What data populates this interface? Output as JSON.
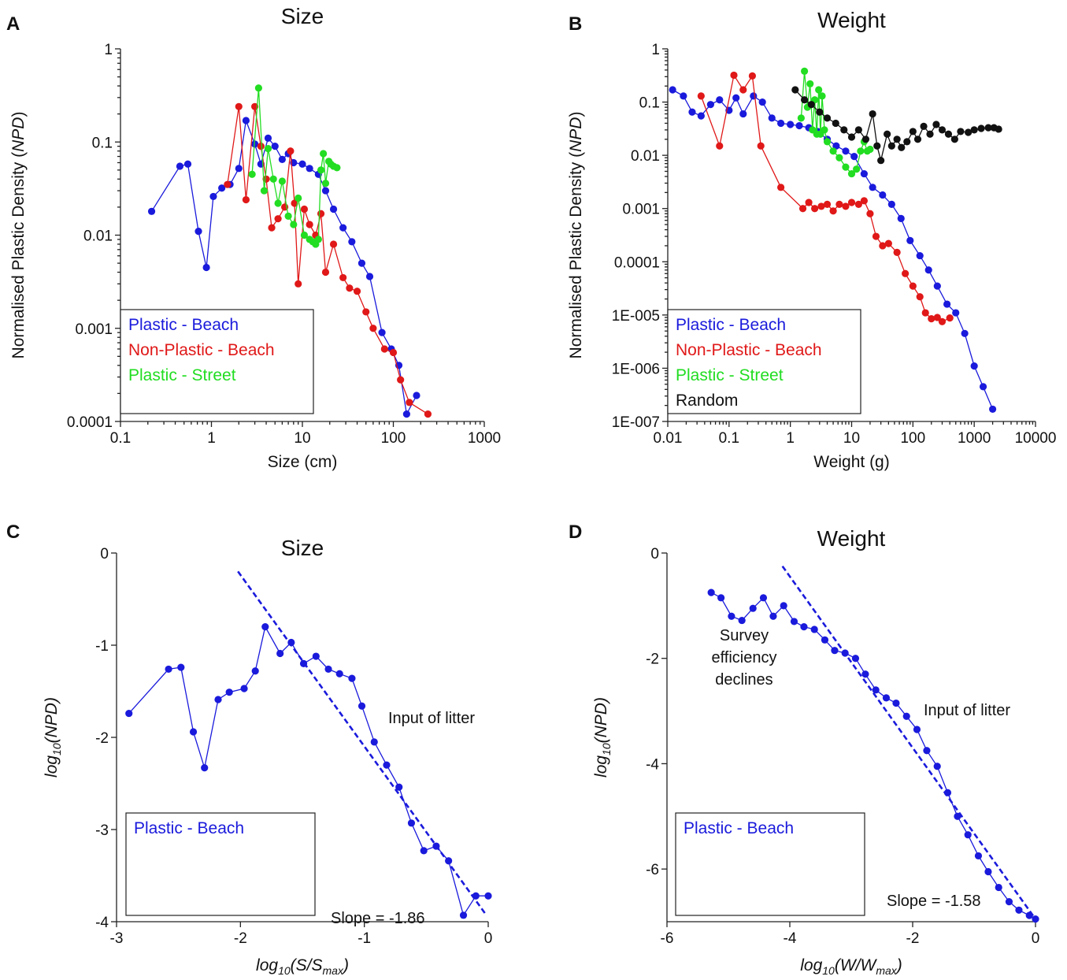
{
  "colors": {
    "blue": "#1a1adc",
    "red": "#e01818",
    "green": "#22dd22",
    "black": "#111111"
  },
  "chart_data": [
    {
      "id": "A",
      "panel_label": "A",
      "type": "line",
      "title": "Size",
      "xlabel": "Size (cm)",
      "ylabel_parts": [
        "Normalised Plastic Density (",
        "NPD",
        ")"
      ],
      "xscale": "log",
      "yscale": "log",
      "xlim": [
        0.1,
        1000
      ],
      "ylim": [
        0.0001,
        1
      ],
      "xticks": [
        {
          "v": 0.1,
          "label": "0.1"
        },
        {
          "v": 1,
          "label": "1"
        },
        {
          "v": 10,
          "label": "10"
        },
        {
          "v": 100,
          "label": "100"
        },
        {
          "v": 1000,
          "label": "1000"
        }
      ],
      "yticks": [
        {
          "v": 0.0001,
          "label": "0.0001"
        },
        {
          "v": 0.001,
          "label": "0.001"
        },
        {
          "v": 0.01,
          "label": "0.01"
        },
        {
          "v": 0.1,
          "label": "0.1"
        },
        {
          "v": 1,
          "label": "1"
        }
      ],
      "legend": {
        "position": "bottom-left",
        "entries": [
          {
            "label": "Plastic - Beach",
            "color": "blue"
          },
          {
            "label": "Non-Plastic - Beach",
            "color": "red"
          },
          {
            "label": "Plastic - Street",
            "color": "green"
          }
        ]
      },
      "series": [
        {
          "name": "Plastic - Beach",
          "color": "blue",
          "x": [
            0.22,
            0.45,
            0.55,
            0.72,
            0.88,
            1.05,
            1.3,
            1.6,
            2.0,
            2.4,
            3.0,
            3.5,
            4.2,
            5.0,
            6.0,
            7.0,
            8.0,
            10,
            12,
            15,
            18,
            22,
            28,
            35,
            45,
            55,
            75,
            95,
            115,
            140,
            180
          ],
          "y": [
            0.018,
            0.055,
            0.058,
            0.011,
            0.0045,
            0.026,
            0.032,
            0.035,
            0.052,
            0.17,
            0.095,
            0.058,
            0.11,
            0.09,
            0.065,
            0.075,
            0.06,
            0.058,
            0.052,
            0.045,
            0.03,
            0.019,
            0.012,
            0.0085,
            0.005,
            0.0036,
            0.0009,
            0.0006,
            0.0004,
            0.00012,
            0.00019
          ]
        },
        {
          "name": "Non-Plastic - Beach",
          "color": "red",
          "x": [
            1.5,
            2.0,
            2.4,
            3.0,
            3.5,
            4.0,
            4.6,
            5.4,
            6.4,
            7.4,
            8.2,
            9.0,
            10.5,
            12,
            14,
            16,
            18,
            22,
            28,
            33,
            40,
            50,
            60,
            80,
            100,
            120,
            150,
            240
          ],
          "y": [
            0.035,
            0.24,
            0.024,
            0.24,
            0.09,
            0.04,
            0.012,
            0.015,
            0.02,
            0.08,
            0.022,
            0.003,
            0.019,
            0.013,
            0.01,
            0.017,
            0.004,
            0.008,
            0.0035,
            0.0027,
            0.0025,
            0.0015,
            0.001,
            0.0006,
            0.00055,
            0.00028,
            0.00016,
            0.00012
          ]
        },
        {
          "name": "Plastic - Street",
          "color": "green",
          "x": [
            2.8,
            3.3,
            3.8,
            4.2,
            4.8,
            5.4,
            6.0,
            7.0,
            8.0,
            9.0,
            10.5,
            12,
            13,
            14,
            15,
            16,
            17,
            18,
            19.5,
            20.5,
            22,
            24
          ],
          "y": [
            0.045,
            0.38,
            0.03,
            0.085,
            0.04,
            0.022,
            0.038,
            0.016,
            0.013,
            0.025,
            0.01,
            0.009,
            0.0085,
            0.008,
            0.009,
            0.05,
            0.075,
            0.036,
            0.062,
            0.058,
            0.055,
            0.053
          ]
        }
      ]
    },
    {
      "id": "B",
      "panel_label": "B",
      "type": "line",
      "title": "Weight",
      "xlabel": "Weight (g)",
      "ylabel_parts": [
        "Normalised Plastic Density (",
        "NPD",
        ")"
      ],
      "xscale": "log",
      "yscale": "log",
      "xlim": [
        0.01,
        10000
      ],
      "ylim": [
        1e-07,
        1
      ],
      "xticks": [
        {
          "v": 0.01,
          "label": "0.01"
        },
        {
          "v": 0.1,
          "label": "0.1"
        },
        {
          "v": 1,
          "label": "1"
        },
        {
          "v": 10,
          "label": "10"
        },
        {
          "v": 100,
          "label": "100"
        },
        {
          "v": 1000,
          "label": "1000"
        },
        {
          "v": 10000,
          "label": "10000"
        }
      ],
      "yticks": [
        {
          "v": 1e-07,
          "label": "1E-007"
        },
        {
          "v": 1e-06,
          "label": "1E-006"
        },
        {
          "v": 1e-05,
          "label": "1E-005"
        },
        {
          "v": 0.0001,
          "label": "0.0001"
        },
        {
          "v": 0.001,
          "label": "0.001"
        },
        {
          "v": 0.01,
          "label": "0.01"
        },
        {
          "v": 0.1,
          "label": "0.1"
        },
        {
          "v": 1,
          "label": "1"
        }
      ],
      "legend": {
        "position": "bottom-left",
        "entries": [
          {
            "label": "Plastic - Beach",
            "color": "blue"
          },
          {
            "label": "Non-Plastic - Beach",
            "color": "red"
          },
          {
            "label": "Plastic - Street",
            "color": "green"
          },
          {
            "label": "Random",
            "color": "black"
          }
        ]
      },
      "series": [
        {
          "name": "Plastic - Beach",
          "color": "blue",
          "x": [
            0.012,
            0.018,
            0.025,
            0.035,
            0.05,
            0.07,
            0.1,
            0.13,
            0.17,
            0.25,
            0.35,
            0.5,
            0.7,
            1.0,
            1.4,
            2.0,
            2.8,
            4.0,
            5.6,
            8.0,
            11,
            16,
            22,
            32,
            45,
            64,
            90,
            130,
            180,
            250,
            360,
            500,
            700,
            1000,
            1400,
            2000
          ],
          "y": [
            0.17,
            0.13,
            0.065,
            0.055,
            0.09,
            0.11,
            0.07,
            0.12,
            0.06,
            0.13,
            0.1,
            0.05,
            0.04,
            0.038,
            0.036,
            0.033,
            0.028,
            0.02,
            0.015,
            0.012,
            0.0095,
            0.0045,
            0.0025,
            0.0018,
            0.0012,
            0.00065,
            0.00025,
            0.00013,
            7e-05,
            3.5e-05,
            1.6e-05,
            1.1e-05,
            4.5e-06,
            1.1e-06,
            4.5e-07,
            1.7e-07
          ]
        },
        {
          "name": "Non-Plastic - Beach",
          "color": "red",
          "x": [
            0.035,
            0.07,
            0.12,
            0.17,
            0.24,
            0.33,
            0.7,
            1.6,
            2.0,
            2.5,
            3.2,
            4.0,
            5.0,
            6.3,
            8.0,
            10,
            13,
            16,
            20,
            25,
            32,
            40,
            55,
            75,
            100,
            130,
            160,
            200,
            250,
            300,
            400
          ],
          "y": [
            0.13,
            0.015,
            0.32,
            0.17,
            0.31,
            0.015,
            0.0025,
            0.001,
            0.0013,
            0.001,
            0.0011,
            0.0012,
            0.0009,
            0.0012,
            0.0011,
            0.0013,
            0.0012,
            0.0014,
            0.0008,
            0.0003,
            0.0002,
            0.00022,
            0.00015,
            6e-05,
            3.5e-05,
            2.2e-05,
            1.1e-05,
            8.5e-06,
            9e-06,
            7.5e-06,
            8.8e-06
          ]
        },
        {
          "name": "Plastic - Street",
          "color": "green",
          "x": [
            1.5,
            1.7,
            1.9,
            2.1,
            2.3,
            2.5,
            2.7,
            2.9,
            3.1,
            3.3,
            3.6,
            4.0,
            5.0,
            6.3,
            8.0,
            10,
            12,
            14,
            16,
            18,
            20
          ],
          "y": [
            0.05,
            0.38,
            0.08,
            0.22,
            0.03,
            0.11,
            0.025,
            0.17,
            0.025,
            0.13,
            0.03,
            0.018,
            0.012,
            0.009,
            0.006,
            0.0045,
            0.0055,
            0.012,
            0.018,
            0.012,
            0.013
          ]
        },
        {
          "name": "Random",
          "color": "black",
          "x": [
            1.2,
            1.7,
            2.2,
            3.0,
            4.0,
            5.5,
            7.5,
            10,
            13,
            17,
            22,
            26,
            30,
            38,
            45,
            55,
            65,
            80,
            100,
            120,
            150,
            190,
            240,
            300,
            380,
            480,
            600,
            800,
            1000,
            1300,
            1700,
            2100,
            2500
          ],
          "y": [
            0.17,
            0.11,
            0.09,
            0.065,
            0.05,
            0.04,
            0.03,
            0.022,
            0.03,
            0.02,
            0.06,
            0.015,
            0.008,
            0.025,
            0.015,
            0.02,
            0.014,
            0.018,
            0.028,
            0.02,
            0.035,
            0.025,
            0.038,
            0.03,
            0.025,
            0.02,
            0.028,
            0.027,
            0.03,
            0.032,
            0.033,
            0.033,
            0.031
          ]
        }
      ]
    },
    {
      "id": "C",
      "panel_label": "C",
      "type": "line",
      "title": "Size",
      "xlabel_parts": [
        "log",
        "10",
        "(S/S",
        "max",
        ")"
      ],
      "ylabel_parts": [
        "log",
        "10",
        "(NPD)"
      ],
      "xscale": "linear",
      "yscale": "linear",
      "xlim": [
        -3,
        0
      ],
      "ylim": [
        -4,
        0
      ],
      "xticks": [
        {
          "v": -3,
          "label": "-3"
        },
        {
          "v": -2,
          "label": "-2"
        },
        {
          "v": -1,
          "label": "-1"
        },
        {
          "v": 0,
          "label": "0"
        }
      ],
      "yticks": [
        {
          "v": -4,
          "label": "-4"
        },
        {
          "v": -3,
          "label": "-3"
        },
        {
          "v": -2,
          "label": "-2"
        },
        {
          "v": -1,
          "label": "-1"
        },
        {
          "v": 0,
          "label": "0"
        }
      ],
      "legend": {
        "position": "bottom-left",
        "entries": [
          {
            "label": "Plastic - Beach",
            "color": "blue"
          }
        ]
      },
      "fit_line": {
        "x": [
          -2.02,
          -0.02
        ],
        "y": [
          -0.2,
          -3.92
        ],
        "label": "Slope = -1.86",
        "color": "blue"
      },
      "annotations": [
        "Input of litter"
      ],
      "series": [
        {
          "name": "Plastic - Beach",
          "color": "blue",
          "x": [
            -2.9,
            -2.58,
            -2.48,
            -2.38,
            -2.29,
            -2.18,
            -2.09,
            -1.97,
            -1.88,
            -1.8,
            -1.68,
            -1.59,
            -1.49,
            -1.39,
            -1.29,
            -1.2,
            -1.1,
            -1.02,
            -0.92,
            -0.82,
            -0.72,
            -0.62,
            -0.52,
            -0.42,
            -0.32,
            -0.2,
            -0.1,
            0.0
          ],
          "y": [
            -1.74,
            -1.26,
            -1.24,
            -1.94,
            -2.33,
            -1.59,
            -1.51,
            -1.47,
            -1.28,
            -0.8,
            -1.09,
            -0.97,
            -1.2,
            -1.12,
            -1.26,
            -1.31,
            -1.36,
            -1.66,
            -2.05,
            -2.3,
            -2.54,
            -2.93,
            -3.23,
            -3.18,
            -3.34,
            -3.93,
            -3.72,
            -3.72
          ]
        }
      ]
    },
    {
      "id": "D",
      "panel_label": "D",
      "type": "line",
      "title": "Weight",
      "xlabel_parts": [
        "log",
        "10",
        "(W/W",
        "max",
        ")"
      ],
      "ylabel_parts": [
        "log",
        "10",
        "(NPD)"
      ],
      "xscale": "linear",
      "yscale": "linear",
      "xlim": [
        -6,
        0
      ],
      "ylim": [
        -7,
        0
      ],
      "xticks": [
        {
          "v": -6,
          "label": "-6"
        },
        {
          "v": -4,
          "label": "-4"
        },
        {
          "v": -2,
          "label": "-2"
        },
        {
          "v": 0,
          "label": "0"
        }
      ],
      "yticks": [
        {
          "v": -6,
          "label": "-6"
        },
        {
          "v": -4,
          "label": "-4"
        },
        {
          "v": -2,
          "label": "-2"
        },
        {
          "v": 0,
          "label": "0"
        }
      ],
      "legend": {
        "position": "bottom-left",
        "entries": [
          {
            "label": "Plastic - Beach",
            "color": "blue"
          }
        ]
      },
      "fit_line": {
        "x": [
          -4.12,
          0.0
        ],
        "y": [
          -0.25,
          -6.95
        ],
        "label": "Slope = -1.58",
        "color": "blue"
      },
      "annotations": [
        "Survey efficiency declines",
        "Input of litter"
      ],
      "series": [
        {
          "name": "Plastic - Beach",
          "color": "blue",
          "x": [
            -5.28,
            -5.12,
            -4.95,
            -4.78,
            -4.6,
            -4.43,
            -4.27,
            -4.1,
            -3.93,
            -3.77,
            -3.6,
            -3.43,
            -3.27,
            -3.1,
            -2.93,
            -2.77,
            -2.6,
            -2.43,
            -2.27,
            -2.1,
            -1.93,
            -1.77,
            -1.6,
            -1.43,
            -1.27,
            -1.1,
            -0.93,
            -0.77,
            -0.6,
            -0.43,
            -0.27,
            -0.1,
            0.0
          ],
          "y": [
            -0.75,
            -0.85,
            -1.2,
            -1.28,
            -1.05,
            -0.85,
            -1.2,
            -1.0,
            -1.3,
            -1.4,
            -1.45,
            -1.65,
            -1.85,
            -1.9,
            -2.0,
            -2.3,
            -2.6,
            -2.75,
            -2.85,
            -3.1,
            -3.35,
            -3.75,
            -4.05,
            -4.55,
            -5.0,
            -5.35,
            -5.75,
            -6.05,
            -6.35,
            -6.62,
            -6.78,
            -6.88,
            -6.95
          ]
        }
      ]
    }
  ]
}
